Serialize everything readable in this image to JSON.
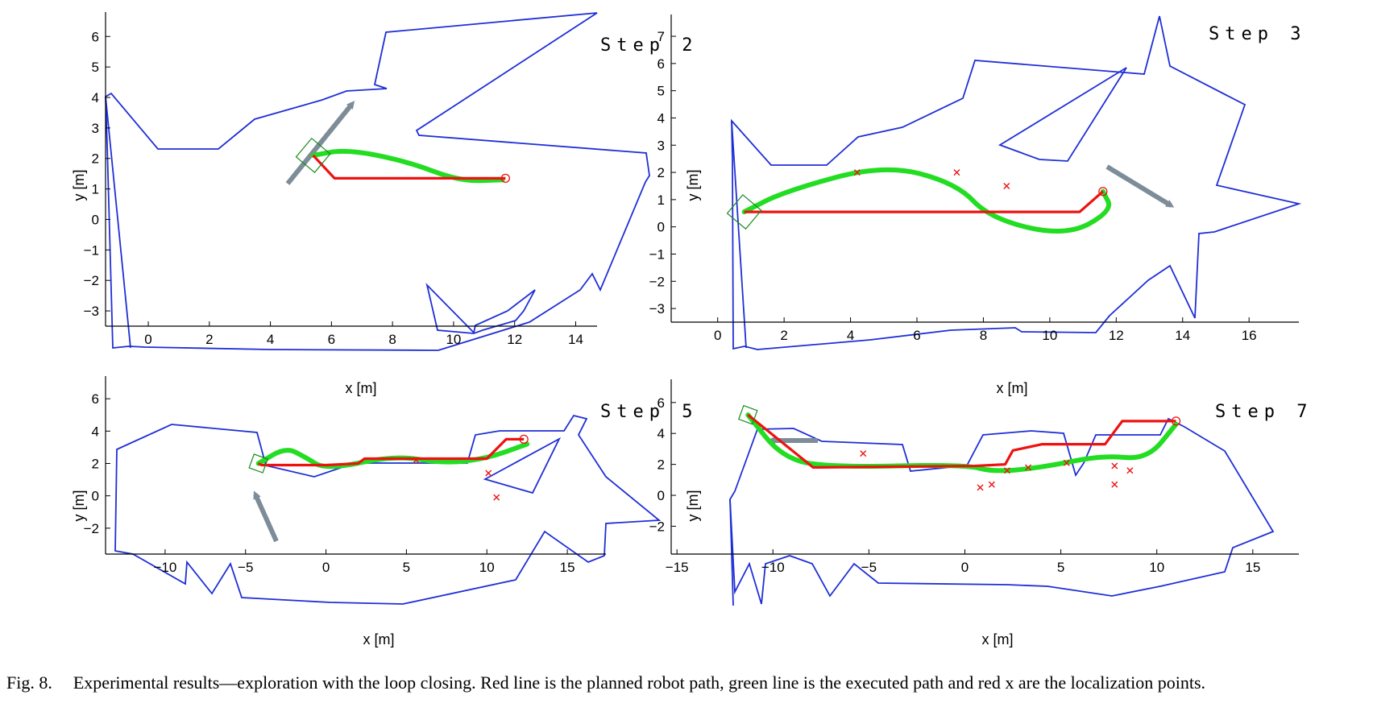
{
  "caption": {
    "label": "Fig. 8.",
    "text": "Experimental results—exploration with the loop closing. Red line is the planned robot path, green line is the executed path and red x are the localization points."
  },
  "colors": {
    "map": "#1f2fd6",
    "planned": "#ee1111",
    "executed": "#22dd22",
    "robot": "#1a8a1a",
    "arrow": "#7d8c99"
  },
  "chart_data": [
    {
      "type": "line",
      "title": "Step 2",
      "xlabel": "x [m]",
      "ylabel": "y [m]",
      "xlim": [
        -1.4,
        14.7
      ],
      "ylim": [
        -3.5,
        6.8
      ],
      "xticks": [
        "0",
        "2",
        "4",
        "6",
        "8",
        "10",
        "12",
        "14"
      ],
      "yticks": [
        "−3",
        "−2",
        "−1",
        "0",
        "1",
        "2",
        "3",
        "4",
        "5",
        "6"
      ],
      "planned": [
        [
          5.4,
          2.1
        ],
        [
          6.1,
          1.35
        ],
        [
          11.7,
          1.35
        ]
      ],
      "executed": [
        [
          5.4,
          2.1
        ],
        [
          6.5,
          2.3
        ],
        [
          8.5,
          1.9
        ],
        [
          10.2,
          1.25
        ],
        [
          11.6,
          1.3
        ]
      ],
      "loc_points": []
    },
    {
      "type": "line",
      "title": "Step 3",
      "xlabel": "x [m]",
      "ylabel": "y [m]",
      "xlim": [
        -1.4,
        17.5
      ],
      "ylim": [
        -3.5,
        7.8
      ],
      "xticks": [
        "0",
        "2",
        "4",
        "6",
        "8",
        "10",
        "12",
        "14",
        "16"
      ],
      "yticks": [
        "−3",
        "−2",
        "−1",
        "0",
        "1",
        "2",
        "3",
        "4",
        "5",
        "6",
        "7"
      ],
      "planned": [
        [
          0.8,
          0.55
        ],
        [
          10.9,
          0.55
        ],
        [
          11.6,
          1.3
        ]
      ],
      "executed": [
        [
          0.8,
          0.55
        ],
        [
          2.0,
          1.3
        ],
        [
          5.0,
          2.3
        ],
        [
          7.2,
          1.6
        ],
        [
          8.2,
          0.3
        ],
        [
          10.5,
          -0.35
        ],
        [
          11.9,
          0.6
        ],
        [
          11.6,
          1.3
        ]
      ],
      "loc_points": [
        [
          4.2,
          2.0
        ],
        [
          7.2,
          2.0
        ],
        [
          8.7,
          1.5
        ]
      ]
    },
    {
      "type": "line",
      "title": "Step 5",
      "xlabel": "x [m]",
      "ylabel": "y [m]",
      "xlim": [
        -13.7,
        17.4
      ],
      "ylim": [
        -3.6,
        7.4
      ],
      "xticks": [
        "−10",
        "−5",
        "0",
        "5",
        "10",
        "15"
      ],
      "yticks": [
        "−2",
        "0",
        "2",
        "4",
        "6"
      ],
      "planned": [
        [
          -4.2,
          2.0
        ],
        [
          -4.0,
          1.9
        ],
        [
          0,
          1.9
        ],
        [
          2,
          2.0
        ],
        [
          2.4,
          2.3
        ],
        [
          10.0,
          2.3
        ],
        [
          11.2,
          3.5
        ],
        [
          12.3,
          3.5
        ]
      ],
      "executed": [
        [
          -4.2,
          2.0
        ],
        [
          -2.5,
          3.0
        ],
        [
          -1.3,
          2.4
        ],
        [
          0,
          1.6
        ],
        [
          4.3,
          2.5
        ],
        [
          7.3,
          2.0
        ],
        [
          10,
          2.3
        ],
        [
          12.5,
          3.2
        ]
      ],
      "loc_points": [
        [
          5.6,
          2.2
        ],
        [
          10.1,
          1.4
        ],
        [
          10.6,
          -0.1
        ]
      ]
    },
    {
      "type": "line",
      "title": "Step 7",
      "xlabel": "x [m]",
      "ylabel": "y [m]",
      "xlim": [
        -15.3,
        17.4
      ],
      "ylim": [
        -3.8,
        7.5
      ],
      "xticks": [
        "−15",
        "−10",
        "−5",
        "0",
        "5",
        "10",
        "15"
      ],
      "yticks": [
        "−2",
        "0",
        "2",
        "4",
        "6"
      ],
      "planned": [
        [
          -11.3,
          5.2
        ],
        [
          -7.9,
          1.8
        ],
        [
          0.5,
          1.9
        ],
        [
          2.1,
          2.0
        ],
        [
          2.5,
          2.9
        ],
        [
          4,
          3.3
        ],
        [
          7.3,
          3.3
        ],
        [
          8.2,
          4.8
        ],
        [
          11,
          4.8
        ]
      ],
      "executed": [
        [
          -11.3,
          5.2
        ],
        [
          -9.5,
          2.4
        ],
        [
          -7,
          1.8
        ],
        [
          0,
          2.0
        ],
        [
          1.5,
          1.5
        ],
        [
          4,
          1.8
        ],
        [
          7.2,
          2.6
        ],
        [
          9.5,
          2.3
        ],
        [
          11,
          4.6
        ]
      ],
      "loc_points": [
        [
          -5.3,
          2.7
        ],
        [
          0.8,
          0.5
        ],
        [
          1.4,
          0.7
        ],
        [
          2.2,
          1.6
        ],
        [
          3.3,
          1.8
        ],
        [
          5.3,
          2.1
        ],
        [
          7.8,
          1.9
        ],
        [
          8.6,
          1.6
        ],
        [
          7.8,
          0.7
        ]
      ]
    }
  ]
}
